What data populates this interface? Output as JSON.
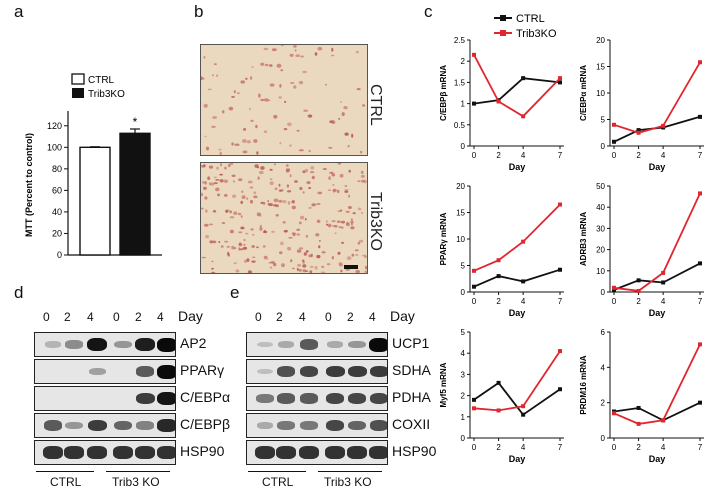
{
  "panels": {
    "a": {
      "label": "a",
      "legend": [
        "CTRL",
        "Trib3KO"
      ],
      "ylabel": "MTT (Percent to control)",
      "yticks": [
        "0",
        "20",
        "40",
        "60",
        "80",
        "100",
        "120"
      ],
      "significance": "*"
    },
    "b": {
      "label": "b",
      "ctrl_label": "CTRL",
      "ko_label": "Trib3KO"
    },
    "c": {
      "label": "c",
      "legend": [
        "CTRL",
        "Trib3KO"
      ],
      "xlabel": "Day"
    },
    "d": {
      "label": "d",
      "day_word": "Day",
      "lanes": [
        "0",
        "2",
        "4",
        "0",
        "2",
        "4"
      ],
      "proteins": [
        "AP2",
        "PPARγ",
        "C/EBPα",
        "C/EBPβ",
        "HSP90"
      ],
      "groups": [
        "CTRL",
        "Trib3 KO"
      ]
    },
    "e": {
      "label": "e",
      "day_word": "Day",
      "lanes": [
        "0",
        "2",
        "4",
        "0",
        "2",
        "4"
      ],
      "proteins": [
        "UCP1",
        "SDHA",
        "PDHA",
        "COXII",
        "HSP90"
      ],
      "groups": [
        "CTRL",
        "Trib3 KO"
      ]
    }
  },
  "colors": {
    "ctrl": "#111111",
    "ko": "#e0262e"
  },
  "chart_data": [
    {
      "type": "bar",
      "title": "",
      "categories": [
        "CTRL",
        "Trib3KO"
      ],
      "values": [
        100,
        113
      ],
      "errors": [
        0.5,
        4
      ],
      "ylabel": "MTT (Percent to control)",
      "ylim": [
        0,
        130
      ],
      "yticks": [
        0,
        20,
        40,
        60,
        80,
        100,
        120
      ]
    },
    {
      "type": "line",
      "ylabel": "C/EBPβ mRNA",
      "xlabel": "Day",
      "x": [
        0,
        2,
        4,
        7
      ],
      "ylim": [
        0,
        2.5
      ],
      "yticks": [
        0,
        0.5,
        1,
        1.5,
        2,
        2.5
      ],
      "series": [
        {
          "name": "CTRL",
          "values": [
            1.0,
            1.08,
            1.6,
            1.5
          ]
        },
        {
          "name": "Trib3KO",
          "values": [
            2.15,
            1.05,
            0.7,
            1.6
          ]
        }
      ]
    },
    {
      "type": "line",
      "ylabel": "C/EBPα mRNA",
      "xlabel": "Day",
      "x": [
        0,
        2,
        4,
        7
      ],
      "ylim": [
        0,
        20
      ],
      "yticks": [
        0,
        5,
        10,
        15,
        20
      ],
      "series": [
        {
          "name": "CTRL",
          "values": [
            0.8,
            3.0,
            3.5,
            5.5
          ]
        },
        {
          "name": "Trib3KO",
          "values": [
            4.0,
            2.5,
            3.8,
            15.8
          ]
        }
      ]
    },
    {
      "type": "line",
      "ylabel": "PPARγ mRNA",
      "xlabel": "Day",
      "x": [
        0,
        2,
        4,
        7
      ],
      "ylim": [
        0,
        20
      ],
      "yticks": [
        0,
        5,
        10,
        15,
        20
      ],
      "series": [
        {
          "name": "CTRL",
          "values": [
            1.0,
            3.0,
            2.0,
            4.2
          ]
        },
        {
          "name": "Trib3KO",
          "values": [
            4.0,
            6.0,
            9.5,
            16.5
          ]
        }
      ]
    },
    {
      "type": "line",
      "ylabel": "ADRB3 mRNA",
      "xlabel": "Day",
      "x": [
        0,
        2,
        4,
        7
      ],
      "ylim": [
        0,
        50
      ],
      "yticks": [
        0,
        10,
        20,
        30,
        40,
        50
      ],
      "series": [
        {
          "name": "CTRL",
          "values": [
            1.0,
            5.5,
            4.5,
            13.5
          ]
        },
        {
          "name": "Trib3KO",
          "values": [
            2.0,
            0.5,
            9.0,
            46.5
          ]
        }
      ]
    },
    {
      "type": "line",
      "ylabel": "Myf5 mRNA",
      "xlabel": "Day",
      "x": [
        0,
        2,
        4,
        7
      ],
      "ylim": [
        0,
        5
      ],
      "yticks": [
        0,
        1,
        2,
        3,
        4,
        5
      ],
      "series": [
        {
          "name": "CTRL",
          "values": [
            1.8,
            2.6,
            1.1,
            2.3
          ]
        },
        {
          "name": "Trib3KO",
          "values": [
            1.4,
            1.3,
            1.5,
            4.1
          ]
        }
      ]
    },
    {
      "type": "line",
      "ylabel": "PRDM16 mRNA",
      "xlabel": "Day",
      "x": [
        0,
        2,
        4,
        7
      ],
      "ylim": [
        0,
        6
      ],
      "yticks": [
        0,
        2,
        4,
        6
      ],
      "series": [
        {
          "name": "CTRL",
          "values": [
            1.5,
            1.7,
            1.0,
            2.0
          ]
        },
        {
          "name": "Trib3KO",
          "values": [
            1.4,
            0.8,
            1.0,
            5.3
          ]
        }
      ]
    }
  ]
}
